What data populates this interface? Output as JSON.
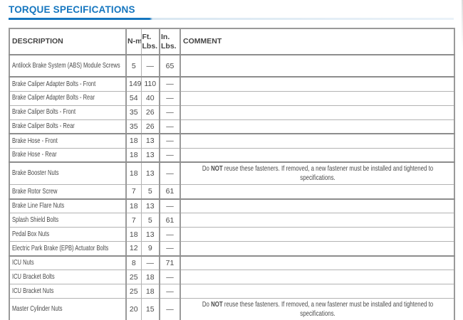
{
  "page": {
    "title": "TORQUE SPECIFICATIONS",
    "title_color": "#1576bf",
    "rule_light_color": "#d9e7f2"
  },
  "table": {
    "headers": {
      "description": "DESCRIPTION",
      "nm": "N-m",
      "ft_lbs": "Ft. Lbs.",
      "in_lbs": "In. Lbs.",
      "comment": "COMMENT"
    },
    "reuse_note": [
      {
        "text": "Do ",
        "bold": false
      },
      {
        "text": "NOT",
        "bold": true
      },
      {
        "text": " reuse these fasteners. If removed, a new fastener must be installed and tightened to specifications.",
        "bold": false
      }
    ],
    "rows": [
      {
        "description": "Antilock Brake System (ABS) Module Screws",
        "nm": "5",
        "ft_lbs": "—",
        "in_lbs": "65",
        "has_note": false,
        "tall": true,
        "group_end": true
      },
      {
        "description": "Brake Caliper Adapter Bolts - Front",
        "nm": "149",
        "ft_lbs": "110",
        "in_lbs": "—",
        "has_note": false,
        "tall": false,
        "group_end": false
      },
      {
        "description": "Brake Caliper Adapter Bolts - Rear",
        "nm": "54",
        "ft_lbs": "40",
        "in_lbs": "—",
        "has_note": false,
        "tall": false,
        "group_end": false
      },
      {
        "description": "Brake Caliper Bolts - Front",
        "nm": "35",
        "ft_lbs": "26",
        "in_lbs": "—",
        "has_note": false,
        "tall": false,
        "group_end": false
      },
      {
        "description": "Brake Caliper Bolts - Rear",
        "nm": "35",
        "ft_lbs": "26",
        "in_lbs": "—",
        "has_note": false,
        "tall": false,
        "group_end": true
      },
      {
        "description": "Brake Hose - Front",
        "nm": "18",
        "ft_lbs": "13",
        "in_lbs": "—",
        "has_note": false,
        "tall": false,
        "group_end": false
      },
      {
        "description": "Brake Hose - Rear",
        "nm": "18",
        "ft_lbs": "13",
        "in_lbs": "—",
        "has_note": false,
        "tall": false,
        "group_end": true
      },
      {
        "description": "Brake Booster Nuts",
        "nm": "18",
        "ft_lbs": "13",
        "in_lbs": "—",
        "has_note": true,
        "tall": true,
        "group_end": false
      },
      {
        "description": "Brake Rotor Screw",
        "nm": "7",
        "ft_lbs": "5",
        "in_lbs": "61",
        "has_note": false,
        "tall": false,
        "group_end": true
      },
      {
        "description": "Brake Line Flare Nuts",
        "nm": "18",
        "ft_lbs": "13",
        "in_lbs": "—",
        "has_note": false,
        "tall": false,
        "group_end": false
      },
      {
        "description": "Splash Shield Bolts",
        "nm": "7",
        "ft_lbs": "5",
        "in_lbs": "61",
        "has_note": false,
        "tall": false,
        "group_end": false
      },
      {
        "description": "Pedal Box Nuts",
        "nm": "18",
        "ft_lbs": "13",
        "in_lbs": "—",
        "has_note": false,
        "tall": false,
        "group_end": false
      },
      {
        "description": "Electric Park Brake (EPB) Actuator Bolts",
        "nm": "12",
        "ft_lbs": "9",
        "in_lbs": "—",
        "has_note": false,
        "tall": false,
        "group_end": true
      },
      {
        "description": "ICU Nuts",
        "nm": "8",
        "ft_lbs": "—",
        "in_lbs": "71",
        "has_note": false,
        "tall": false,
        "group_end": false
      },
      {
        "description": "ICU Bracket Bolts",
        "nm": "25",
        "ft_lbs": "18",
        "in_lbs": "—",
        "has_note": false,
        "tall": false,
        "group_end": false
      },
      {
        "description": "ICU Bracket Nuts",
        "nm": "25",
        "ft_lbs": "18",
        "in_lbs": "—",
        "has_note": false,
        "tall": false,
        "group_end": false
      },
      {
        "description": "Master Cylinder Nuts",
        "nm": "20",
        "ft_lbs": "15",
        "in_lbs": "—",
        "has_note": true,
        "tall": true,
        "group_end": true
      }
    ]
  }
}
